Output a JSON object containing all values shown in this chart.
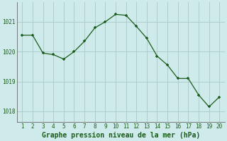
{
  "x": [
    1,
    2,
    3,
    4,
    5,
    6,
    7,
    8,
    9,
    10,
    11,
    12,
    13,
    14,
    15,
    16,
    17,
    18,
    19,
    20
  ],
  "y": [
    1020.55,
    1020.55,
    1019.95,
    1019.9,
    1019.75,
    1020.0,
    1020.35,
    1020.8,
    1021.0,
    1021.25,
    1021.22,
    1020.85,
    1020.45,
    1019.85,
    1019.55,
    1019.1,
    1019.1,
    1018.55,
    1018.15,
    1018.48
  ],
  "title": "Graphe pression niveau de la mer (hPa)",
  "bg_color": "#ceeaea",
  "line_color": "#1a5c1a",
  "marker_color": "#1a5c1a",
  "grid_color": "#aecece",
  "ylim_min": 1017.65,
  "ylim_max": 1021.65,
  "yticks": [
    1018,
    1019,
    1020,
    1021
  ],
  "xlim_min": 0.5,
  "xlim_max": 20.5,
  "xlabel_fontsize": 7.0,
  "tick_fontsize": 5.5
}
